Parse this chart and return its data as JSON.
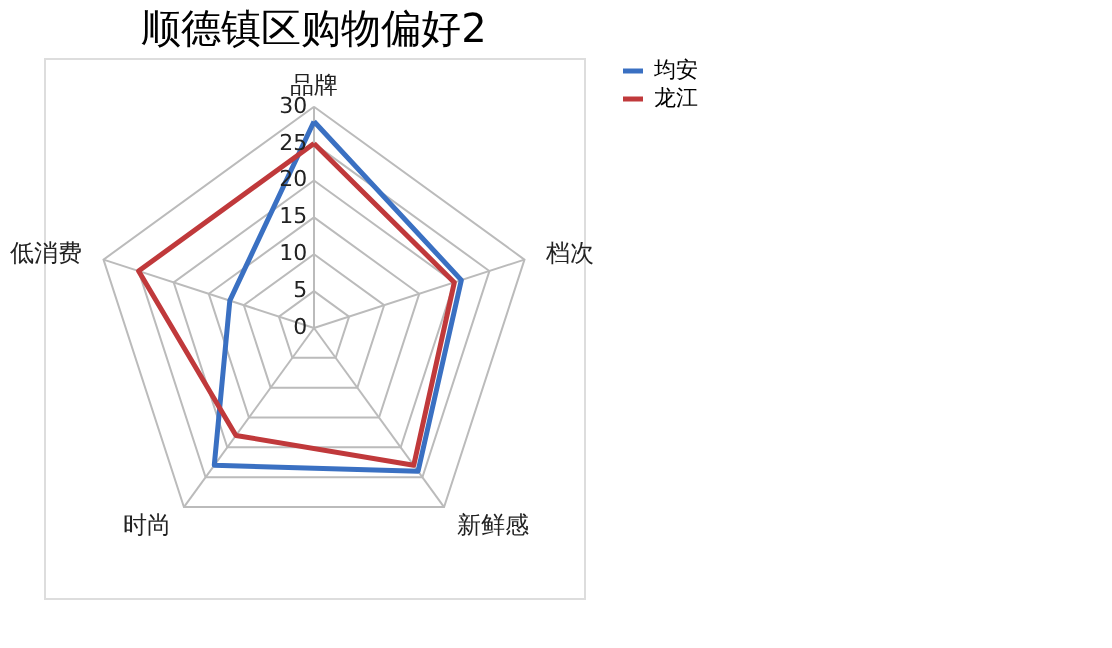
{
  "chart_data": {
    "type": "radar",
    "title": "顺德镇区购物偏好2",
    "categories": [
      "品牌",
      "档次",
      "新鲜感",
      "时尚",
      "低消费"
    ],
    "series": [
      {
        "name": "均安",
        "color": "#3a70c2",
        "values": [
          28,
          21,
          24,
          23,
          12
        ]
      },
      {
        "name": "龙江",
        "color": "#c0393b",
        "values": [
          25,
          20,
          23,
          18,
          25
        ]
      }
    ],
    "ylim": [
      0,
      30
    ],
    "yticks": [
      0,
      5,
      10,
      15,
      20,
      25,
      30
    ],
    "grid": true,
    "legend": "right"
  }
}
